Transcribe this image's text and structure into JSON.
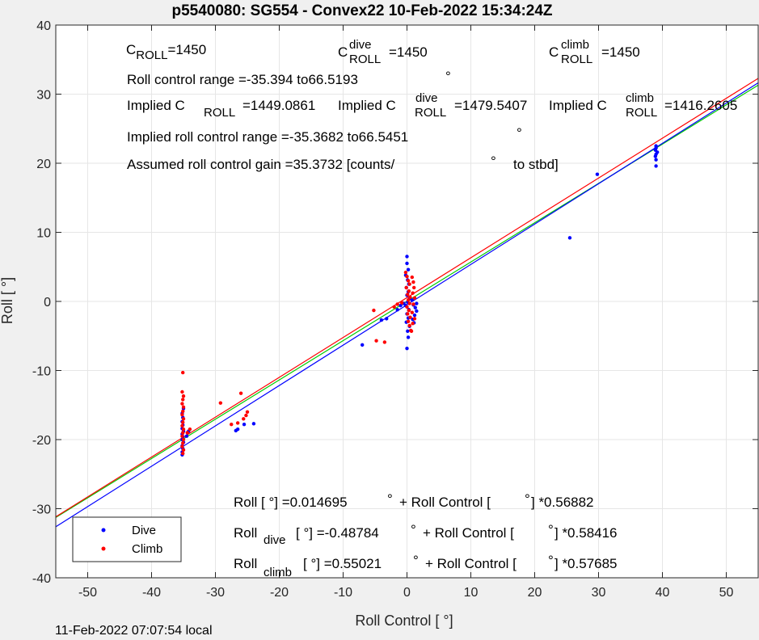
{
  "chart_data": {
    "type": "scatter",
    "title": "p5540080: SG554 - Convex22 10-Feb-2022 15:34:24Z",
    "xlabel": "Roll Control [   °]",
    "ylabel": "Roll [  °]",
    "xlim": [
      -55,
      55
    ],
    "ylim": [
      -40,
      40
    ],
    "xticks": [
      -50,
      -40,
      -30,
      -20,
      -10,
      0,
      10,
      20,
      30,
      40,
      50
    ],
    "yticks": [
      -40,
      -30,
      -20,
      -10,
      0,
      10,
      20,
      30,
      40
    ],
    "grid": true,
    "legend": {
      "placement": "bottom-left",
      "entries": [
        "Dive",
        "Climb"
      ]
    },
    "colors": {
      "dive": "#0000ff",
      "climb": "#ff0000",
      "fit_all": "#00cc00",
      "fit_dive": "#0000ff",
      "fit_climb": "#ff0000"
    },
    "series": [
      {
        "name": "Dive",
        "points": [
          [
            -35.2,
            -22.2
          ],
          [
            -35.2,
            -21.8
          ],
          [
            -35.1,
            -21.3
          ],
          [
            -35.2,
            -20.9
          ],
          [
            -35.0,
            -20.4
          ],
          [
            -35.2,
            -20.0
          ],
          [
            -35.1,
            -19.6
          ],
          [
            -35.2,
            -19.2
          ],
          [
            -35.0,
            -18.8
          ],
          [
            -35.2,
            -18.4
          ],
          [
            -35.1,
            -17.9
          ],
          [
            -35.2,
            -17.4
          ],
          [
            -35.1,
            -16.8
          ],
          [
            -35.2,
            -16.2
          ],
          [
            -35.0,
            -15.5
          ],
          [
            -26.5,
            -18.5
          ],
          [
            -26.8,
            -18.7
          ],
          [
            -25.5,
            -17.8
          ],
          [
            -24.0,
            -17.7
          ],
          [
            -34.5,
            -19.5
          ],
          [
            -34.2,
            -18.8
          ],
          [
            -7.0,
            -6.3
          ],
          [
            -4.0,
            -2.7
          ],
          [
            -3.2,
            -2.5
          ],
          [
            -1.5,
            -1.2
          ],
          [
            -1.0,
            -0.6
          ],
          [
            -0.5,
            -0.3
          ],
          [
            0.0,
            6.5
          ],
          [
            0.0,
            5.5
          ],
          [
            0.2,
            4.6
          ],
          [
            -0.2,
            3.8
          ],
          [
            0.1,
            3.1
          ],
          [
            0.3,
            2.5
          ],
          [
            -0.1,
            2.0
          ],
          [
            0.2,
            1.4
          ],
          [
            0.0,
            0.9
          ],
          [
            0.4,
            0.4
          ],
          [
            0.1,
            -0.1
          ],
          [
            -0.2,
            -0.6
          ],
          [
            0.3,
            -1.2
          ],
          [
            0.0,
            -1.8
          ],
          [
            0.2,
            -2.4
          ],
          [
            -0.1,
            -3.0
          ],
          [
            0.4,
            -3.6
          ],
          [
            0.1,
            -4.3
          ],
          [
            0.2,
            -5.2
          ],
          [
            0.0,
            -6.8
          ],
          [
            0.8,
            0.2
          ],
          [
            1.0,
            -0.5
          ],
          [
            1.3,
            -0.9
          ],
          [
            1.5,
            -1.4
          ],
          [
            1.2,
            -2.0
          ],
          [
            0.9,
            -2.6
          ],
          [
            1.1,
            -3.1
          ],
          [
            1.5,
            -0.3
          ],
          [
            25.5,
            9.2
          ],
          [
            29.8,
            18.4
          ],
          [
            39.0,
            22.5
          ],
          [
            39.0,
            22.2
          ],
          [
            38.9,
            21.9
          ],
          [
            39.2,
            21.6
          ],
          [
            39.0,
            21.3
          ],
          [
            38.9,
            21.0
          ],
          [
            39.0,
            20.5
          ],
          [
            39.0,
            19.6
          ]
        ]
      },
      {
        "name": "Climb",
        "points": [
          [
            -35.1,
            -10.3
          ],
          [
            -35.2,
            -13.1
          ],
          [
            -35.0,
            -13.7
          ],
          [
            -35.1,
            -14.2
          ],
          [
            -35.2,
            -14.8
          ],
          [
            -35.0,
            -15.3
          ],
          [
            -35.1,
            -15.9
          ],
          [
            -35.2,
            -16.4
          ],
          [
            -35.0,
            -17.0
          ],
          [
            -35.1,
            -17.5
          ],
          [
            -35.2,
            -18.0
          ],
          [
            -35.0,
            -18.5
          ],
          [
            -35.1,
            -19.0
          ],
          [
            -35.2,
            -19.5
          ],
          [
            -35.0,
            -20.0
          ],
          [
            -35.1,
            -20.5
          ],
          [
            -35.2,
            -21.0
          ],
          [
            -35.0,
            -21.5
          ],
          [
            -35.1,
            -22.0
          ],
          [
            -34.4,
            -19.0
          ],
          [
            -34.0,
            -18.5
          ],
          [
            -29.2,
            -14.7
          ],
          [
            -27.5,
            -17.8
          ],
          [
            -26.5,
            -17.6
          ],
          [
            -26.0,
            -13.3
          ],
          [
            -25.6,
            -17.0
          ],
          [
            -25.2,
            -16.5
          ],
          [
            -25.0,
            -16.0
          ],
          [
            -5.2,
            -1.3
          ],
          [
            -4.8,
            -5.7
          ],
          [
            -3.5,
            -5.9
          ],
          [
            -2.0,
            -0.8
          ],
          [
            -1.5,
            -0.4
          ],
          [
            -0.8,
            -0.2
          ],
          [
            -0.2,
            4.2
          ],
          [
            0.0,
            3.6
          ],
          [
            0.2,
            3.0
          ],
          [
            0.4,
            2.5
          ],
          [
            -0.1,
            2.0
          ],
          [
            0.3,
            1.5
          ],
          [
            0.1,
            1.0
          ],
          [
            0.5,
            0.6
          ],
          [
            0.2,
            0.2
          ],
          [
            0.4,
            -0.3
          ],
          [
            0.0,
            -0.8
          ],
          [
            0.3,
            -1.3
          ],
          [
            0.1,
            -1.8
          ],
          [
            0.5,
            -2.3
          ],
          [
            0.2,
            -2.9
          ],
          [
            0.4,
            -3.5
          ],
          [
            0.6,
            -4.2
          ],
          [
            0.8,
            3.5
          ],
          [
            1.0,
            2.8
          ],
          [
            1.1,
            2.0
          ],
          [
            0.9,
            1.2
          ],
          [
            1.2,
            0.5
          ],
          [
            1.0,
            -0.4
          ],
          [
            0.8,
            -1.6
          ],
          [
            1.2,
            -2.5
          ],
          [
            0.9,
            -3.2
          ],
          [
            0.7,
            -4.3
          ]
        ]
      }
    ],
    "fits": [
      {
        "name": "all",
        "intercept": 0.014695,
        "slope": 0.56882
      },
      {
        "name": "dive",
        "intercept": -0.48784,
        "slope": 0.58416
      },
      {
        "name": "climb",
        "intercept": 0.55021,
        "slope": 0.57685
      }
    ],
    "annotations": {
      "c_roll": "=1450",
      "c_roll_dive": "=1450",
      "c_roll_climb": "=1450",
      "range": "Roll control range =-35.394 to66.5193",
      "implied_c_roll": "=1449.0861",
      "implied_c_roll_dive": "=1479.5407",
      "implied_c_roll_climb": "=1416.2605",
      "implied_range": "Implied roll control range =-35.3682 to66.5451",
      "gain": "Assumed roll control gain =35.3732 [counts/",
      "gain_unit": "to stbd]",
      "eq_all_a": "Roll [  °] =0.014695",
      "eq_all_b": "+ Roll Control [",
      "eq_all_c": "] *0.56882",
      "eq_dive_a": "[  °] =-0.48784",
      "eq_dive_b": "+ Roll Control [",
      "eq_dive_c": "] *0.58416",
      "eq_climb_a": "[  °] =0.55021",
      "eq_climb_b": "+ Roll Control [",
      "eq_climb_c": "] *0.57685"
    },
    "labels": {
      "C": "C",
      "ROLL": "ROLL",
      "dive": "dive",
      "climb": "climb",
      "Implied C": "Implied C",
      "Roll": "Roll"
    }
  },
  "footer": {
    "timestamp": "11-Feb-2022 07:07:54 local"
  }
}
